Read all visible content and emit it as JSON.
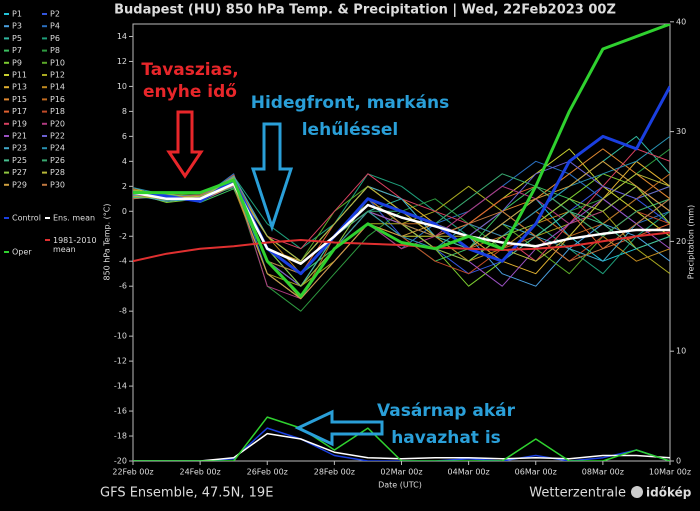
{
  "chart_data": {
    "type": "line",
    "title": "Budapest  (HU)  850 hPa Temp. & Precipitation | Wed, 22Feb2023 00Z",
    "x_label": "Date (UTC)",
    "y_label": "850 hPa Temp. (°C)",
    "y2_label": "Precipitation (mm)",
    "footer_left": "GFS Ensemble, 47.5N, 19E",
    "footer_right": "Wetterzentrale",
    "logo": "időkép",
    "x": [
      0,
      1,
      2,
      3,
      4,
      5,
      6,
      7,
      8,
      9,
      10,
      11,
      12,
      13,
      14,
      15,
      16
    ],
    "xlim": [
      0,
      16
    ],
    "xticks": [
      {
        "value": 0,
        "label": "22Feb 00z"
      },
      {
        "value": 2,
        "label": "24Feb 00z"
      },
      {
        "value": 4,
        "label": "26Feb 00z"
      },
      {
        "value": 6,
        "label": "28Feb 00z"
      },
      {
        "value": 8,
        "label": "02Mar 00z"
      },
      {
        "value": 10,
        "label": "04Mar 00z"
      },
      {
        "value": 12,
        "label": "06Mar 00z"
      },
      {
        "value": 14,
        "label": "08Mar 00z"
      },
      {
        "value": 16,
        "label": "10Mar 00z"
      }
    ],
    "ylim": [
      -20,
      15
    ],
    "yticks": [
      -20,
      -18,
      -16,
      -14,
      -12,
      -10,
      -8,
      -6,
      -4,
      -2,
      0,
      2,
      4,
      6,
      8,
      10,
      12,
      14
    ],
    "y2lim": [
      0,
      39.8
    ],
    "y2ticks": [
      0,
      10,
      20,
      30,
      40
    ],
    "grid": false,
    "annotations": [
      {
        "lines": [
          "Tavaszias,",
          "enyhe idő"
        ],
        "color": "#e8262a"
      },
      {
        "lines": [
          "Hidegfront, markáns",
          "lehűléssel"
        ],
        "color": "#2a9fd8"
      },
      {
        "lines": [
          "Vasárnap akár",
          "havazhat is"
        ],
        "color": "#2a9fd8"
      }
    ],
    "series": [
      {
        "name": "P1",
        "color": "#22c4d8",
        "values": [
          1.5,
          1,
          1,
          2,
          -3,
          -5,
          -3,
          0,
          -1,
          -2,
          -3,
          -1,
          1,
          -2,
          -4,
          -3,
          -2
        ]
      },
      {
        "name": "P2",
        "color": "#3355dd",
        "values": [
          1.2,
          1.4,
          0.8,
          2.5,
          -4,
          -6,
          -2,
          1,
          -2,
          -3,
          -5,
          -4,
          -2,
          0,
          2,
          1,
          -1
        ]
      },
      {
        "name": "P3",
        "color": "#4aa0e0",
        "values": [
          1.8,
          0.8,
          1.2,
          2,
          -2,
          -4,
          -1,
          2,
          0,
          -1,
          -2,
          -5,
          -6,
          -3,
          -1,
          -2,
          -4
        ]
      },
      {
        "name": "P4",
        "color": "#2a6fc0",
        "values": [
          1,
          1.2,
          1,
          3,
          -5,
          -7,
          -4,
          -1,
          -3,
          -1,
          0,
          2,
          4,
          3,
          1,
          -1,
          0
        ]
      },
      {
        "name": "P5",
        "color": "#30b8a0",
        "values": [
          1.6,
          1.1,
          0.9,
          2.2,
          -3,
          -6,
          -2,
          0,
          1,
          -2,
          -4,
          -2,
          0,
          2,
          4,
          6,
          3
        ]
      },
      {
        "name": "P6",
        "color": "#1e9e7a",
        "values": [
          1.4,
          0.9,
          1.3,
          2.8,
          -1,
          -3,
          -1,
          3,
          2,
          0,
          -2,
          -3,
          -1,
          -3,
          -5,
          -2,
          0
        ]
      },
      {
        "name": "P7",
        "color": "#3cc060",
        "values": [
          1.3,
          1.5,
          0.7,
          1.8,
          -4,
          -5,
          -3,
          -1,
          -2,
          -4,
          -3,
          0,
          2,
          1,
          -1,
          1,
          2
        ]
      },
      {
        "name": "P8",
        "color": "#2e9a40",
        "values": [
          1.7,
          1.2,
          1.1,
          2.4,
          -6,
          -8,
          -5,
          -2,
          0,
          1,
          -1,
          -3,
          -2,
          0,
          1,
          3,
          5
        ]
      },
      {
        "name": "P9",
        "color": "#7ccc30",
        "values": [
          1.5,
          0.7,
          1,
          2.1,
          -3,
          -5,
          -2,
          1,
          -1,
          -3,
          -6,
          -4,
          -1,
          1,
          3,
          2,
          -1
        ]
      },
      {
        "name": "P10",
        "color": "#5aa828",
        "values": [
          1.1,
          1.3,
          1.4,
          2.6,
          -2,
          -4,
          0,
          2,
          0,
          -1,
          -3,
          -1,
          -3,
          -5,
          -2,
          0,
          1
        ]
      },
      {
        "name": "P11",
        "color": "#c8d030",
        "values": [
          1.9,
          1,
          0.9,
          2.3,
          -4,
          -7,
          -3,
          0,
          -2,
          -2,
          -1,
          1,
          3,
          5,
          2,
          0,
          -2
        ]
      },
      {
        "name": "P12",
        "color": "#a8a820",
        "values": [
          1.2,
          1.1,
          1.2,
          1.9,
          -5,
          -6,
          -4,
          -1,
          -1,
          0,
          2,
          0,
          -2,
          -1,
          0,
          -3,
          -5
        ]
      },
      {
        "name": "P13",
        "color": "#e0b030",
        "values": [
          1.4,
          1.4,
          0.8,
          2.7,
          -3,
          -4,
          -1,
          2,
          1,
          -1,
          -2,
          -4,
          -5,
          -2,
          1,
          4,
          2
        ]
      },
      {
        "name": "P14",
        "color": "#c08a20",
        "values": [
          1.6,
          0.8,
          1.1,
          2.2,
          -2,
          -5,
          -2,
          1,
          0,
          -2,
          -4,
          -3,
          -1,
          0,
          -2,
          -4,
          -3
        ]
      },
      {
        "name": "P15",
        "color": "#e08830",
        "values": [
          1.3,
          1.2,
          1.3,
          2.5,
          -4,
          -6,
          -3,
          0,
          -1,
          -3,
          -2,
          0,
          1,
          3,
          5,
          3,
          1
        ]
      },
      {
        "name": "P16",
        "color": "#c06a20",
        "values": [
          1.8,
          1,
          1,
          2,
          -5,
          -7,
          -2,
          1,
          -1,
          -1,
          -3,
          -2,
          0,
          -2,
          -1,
          1,
          3
        ]
      },
      {
        "name": "P17",
        "color": "#e06030",
        "values": [
          1,
          1.3,
          0.9,
          2.9,
          -3,
          -5,
          -1,
          2,
          0,
          -2,
          -1,
          1,
          2,
          0,
          -3,
          -2,
          -1
        ]
      },
      {
        "name": "P18",
        "color": "#c04a28",
        "values": [
          1.5,
          0.9,
          1.2,
          2.1,
          -4,
          -6,
          -3,
          -1,
          -2,
          -4,
          -5,
          -3,
          -2,
          -4,
          -2,
          0,
          -1
        ]
      },
      {
        "name": "P19",
        "color": "#d84060",
        "values": [
          1.7,
          1.1,
          1,
          2.4,
          -2,
          -3,
          0,
          3,
          1,
          0,
          -1,
          -2,
          -4,
          -1,
          2,
          5,
          4
        ]
      },
      {
        "name": "P20",
        "color": "#b03a80",
        "values": [
          1.2,
          1.4,
          1.1,
          2.6,
          -6,
          -7,
          -4,
          -1,
          -3,
          -2,
          0,
          2,
          1,
          -1,
          0,
          2,
          0
        ]
      },
      {
        "name": "P21",
        "color": "#9a50c0",
        "values": [
          1.4,
          1,
          0.8,
          2,
          -3,
          -5,
          -2,
          0,
          -1,
          -3,
          -4,
          -6,
          -3,
          -1,
          1,
          -1,
          -3
        ]
      },
      {
        "name": "P22",
        "color": "#6a60d0",
        "values": [
          1.6,
          1.2,
          1.3,
          2.3,
          -4,
          -6,
          -2,
          1,
          0,
          -1,
          -2,
          0,
          3,
          4,
          2,
          1,
          2
        ]
      },
      {
        "name": "P23",
        "color": "#40a8c8",
        "values": [
          1.3,
          0.8,
          1,
          2.8,
          -2,
          -4,
          -1,
          2,
          1,
          -2,
          -3,
          -1,
          -2,
          -3,
          -4,
          -1,
          1
        ]
      },
      {
        "name": "P24",
        "color": "#2890b0",
        "values": [
          1.9,
          1.3,
          1.2,
          2.2,
          -5,
          -7,
          -3,
          0,
          -2,
          -3,
          -1,
          -2,
          0,
          2,
          3,
          4,
          6
        ]
      },
      {
        "name": "P25",
        "color": "#48c090",
        "values": [
          1.1,
          1.1,
          0.9,
          2.5,
          -3,
          -6,
          -2,
          1,
          -1,
          -2,
          -3,
          -4,
          -2,
          0,
          -1,
          -3,
          -2
        ]
      },
      {
        "name": "P26",
        "color": "#38a870",
        "values": [
          1.5,
          0.9,
          1.1,
          1.9,
          -4,
          -5,
          -2,
          0,
          0,
          -1,
          1,
          3,
          2,
          0,
          -2,
          0,
          1
        ]
      },
      {
        "name": "P27",
        "color": "#90c840",
        "values": [
          1.7,
          1.4,
          1,
          2.7,
          -3,
          -6,
          -3,
          1,
          -1,
          -3,
          -4,
          -2,
          -1,
          1,
          0,
          2,
          -1
        ]
      },
      {
        "name": "P28",
        "color": "#b8b838",
        "values": [
          1.2,
          1,
          1.2,
          2.3,
          -2,
          -4,
          -1,
          2,
          0,
          -2,
          -2,
          -3,
          -4,
          -2,
          1,
          3,
          2
        ]
      },
      {
        "name": "P29",
        "color": "#d0a040",
        "values": [
          1.4,
          1.2,
          0.8,
          2.1,
          -5,
          -7,
          -4,
          -1,
          -2,
          -1,
          -3,
          -1,
          1,
          2,
          4,
          2,
          0
        ]
      },
      {
        "name": "P30",
        "color": "#c07840",
        "values": [
          1.6,
          1.1,
          1.3,
          2.6,
          -4,
          -5,
          -2,
          1,
          -1,
          -2,
          -1,
          0,
          -2,
          -4,
          -3,
          -1,
          1
        ]
      },
      {
        "name": "Control",
        "color": "#1a3fe0",
        "values": [
          1.5,
          1.2,
          0.8,
          2.5,
          -3,
          -5,
          -2,
          1,
          0,
          -1,
          -3,
          -4,
          -1,
          4,
          6,
          5,
          10
        ],
        "precip": [
          0,
          0,
          0,
          0.2,
          3,
          2,
          0.5,
          0,
          0,
          0,
          0.2,
          0,
          0.5,
          0,
          0.3,
          1,
          0
        ]
      },
      {
        "name": "Ens. mean",
        "color": "#ffffff",
        "values": [
          1.5,
          1,
          1,
          2.2,
          -3,
          -4.2,
          -2,
          0.5,
          -0.5,
          -1.2,
          -2,
          -2.5,
          -2.8,
          -2.2,
          -1.8,
          -1.5,
          -1.5
        ],
        "precip": [
          0,
          0,
          0,
          0.3,
          2.5,
          2,
          0.8,
          0.3,
          0.2,
          0.3,
          0.3,
          0.2,
          0.3,
          0.2,
          0.5,
          0.5,
          0.3
        ]
      },
      {
        "name": "1981-2010 mean",
        "color": "#e03030",
        "values": [
          -4,
          -3.4,
          -3,
          -2.8,
          -2.5,
          -2.3,
          -2.5,
          -2.6,
          -2.7,
          -2.9,
          -3,
          -3.1,
          -3,
          -2.8,
          -2.4,
          -2,
          -1.7
        ]
      },
      {
        "name": "Oper",
        "color": "#2fd12f",
        "values": [
          1.5,
          1.5,
          1.5,
          2.5,
          -4,
          -6.8,
          -3,
          -1,
          -2.5,
          -3,
          -2,
          -3,
          2,
          8,
          13,
          14,
          15
        ],
        "precip": [
          0,
          0,
          0,
          0,
          4,
          3,
          1,
          3,
          0,
          0,
          0,
          0,
          2,
          0,
          0,
          1,
          0
        ]
      }
    ]
  }
}
